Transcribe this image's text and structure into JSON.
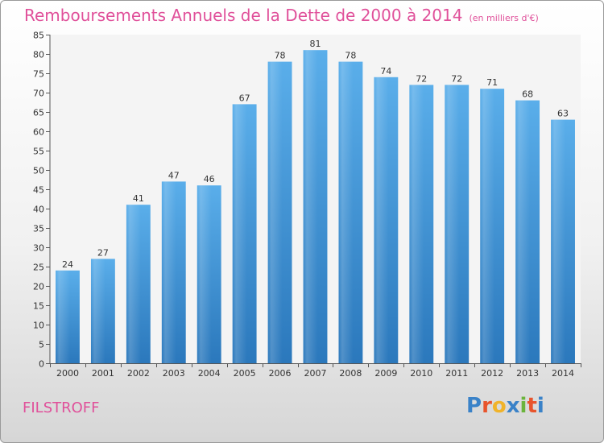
{
  "title": "Remboursements Annuels de la Dette de 2000 à 2014",
  "unit": "(en milliers d'€)",
  "commune": "FILSTROFF",
  "logo": {
    "text": "Proxiti",
    "letters": [
      {
        "ch": "P",
        "color": "#3a82c8"
      },
      {
        "ch": "r",
        "color": "#e8542c"
      },
      {
        "ch": "o",
        "color": "#f0b32a"
      },
      {
        "ch": "x",
        "color": "#3a82c8"
      },
      {
        "ch": "i",
        "color": "#6bb43c"
      },
      {
        "ch": "t",
        "color": "#e8542c"
      },
      {
        "ch": "i",
        "color": "#3a82c8"
      }
    ]
  },
  "colors": {
    "accent": "#e0509a",
    "bar_top": "#5aaeea",
    "bar_bottom": "#2b78bc"
  },
  "chart_data": {
    "type": "bar",
    "title": "Remboursements Annuels de la Dette de 2000 à 2014",
    "xlabel": "",
    "ylabel": "",
    "categories": [
      "2000",
      "2001",
      "2002",
      "2003",
      "2004",
      "2005",
      "2006",
      "2007",
      "2008",
      "2009",
      "2010",
      "2011",
      "2012",
      "2013",
      "2014"
    ],
    "values": [
      24,
      27,
      41,
      47,
      46,
      67,
      78,
      81,
      78,
      74,
      72,
      72,
      71,
      68,
      63
    ],
    "ylim": [
      0,
      85
    ],
    "yticks": [
      0,
      5,
      10,
      15,
      20,
      25,
      30,
      35,
      40,
      45,
      50,
      55,
      60,
      65,
      70,
      75,
      80,
      85
    ],
    "grid": false,
    "legend": "none"
  }
}
